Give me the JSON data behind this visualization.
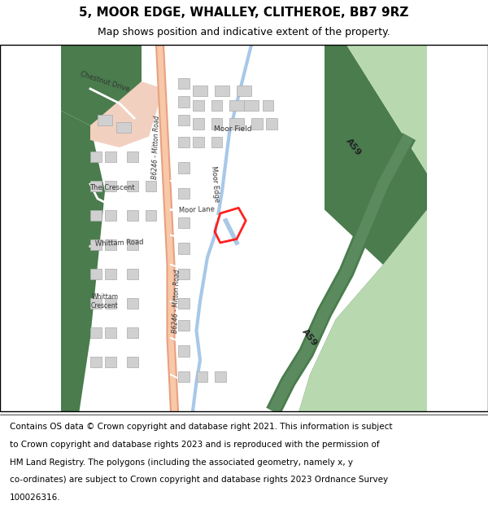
{
  "title": "5, MOOR EDGE, WHALLEY, CLITHEROE, BB7 9RZ",
  "subtitle": "Map shows position and indicative extent of the property.",
  "footer_lines": [
    "Contains OS data © Crown copyright and database right 2021. This information is subject",
    "to Crown copyright and database rights 2023 and is reproduced with the permission of",
    "HM Land Registry. The polygons (including the associated geometry, namely x, y",
    "co-ordinates) are subject to Crown copyright and database rights 2023 Ordnance Survey",
    "100026316."
  ],
  "bg_color": "#ffffff",
  "map_bg": "#f5f5f5",
  "green_dark": "#4a7c4e",
  "green_light": "#b8d9b0",
  "road_main_color": "#e8a080",
  "water_color": "#a8c8e8",
  "building_color": "#d0d0d0",
  "building_outline": "#aaaaaa",
  "plot_color": "#ff2020",
  "road_label_color": "#333333",
  "title_fontsize": 11,
  "subtitle_fontsize": 9,
  "footer_fontsize": 7.5
}
